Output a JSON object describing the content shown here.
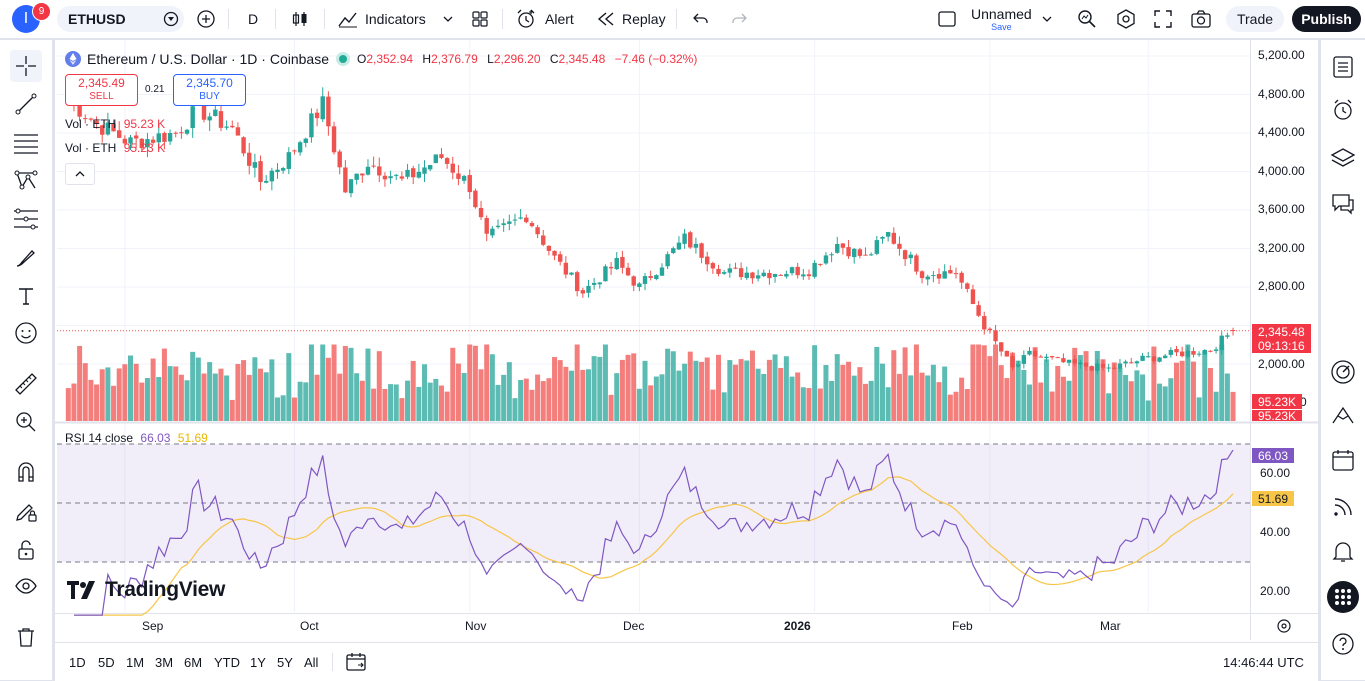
{
  "topbar": {
    "avatar_letter": "I",
    "notifications": "9",
    "symbol": "ETHUSD",
    "interval": "D",
    "indicators_label": "Indicators",
    "alert_label": "Alert",
    "replay_label": "Replay",
    "layout_name": "Unnamed",
    "layout_status": "Save",
    "trade_label": "Trade",
    "publish_label": "Publish"
  },
  "legend": {
    "title": "Ethereum / U.S. Dollar · 1D · Coinbase",
    "open_label": "O",
    "open": "2,352.94",
    "high_label": "H",
    "high": "2,376.79",
    "low_label": "L",
    "low": "2,296.20",
    "close_label": "C",
    "close": "2,345.48",
    "change": "−7.46 (−0.32%)"
  },
  "trade": {
    "sell_price": "2,345.49",
    "sell_label": "SELL",
    "spread": "0.21",
    "buy_price": "2,345.70",
    "buy_label": "BUY"
  },
  "volume_legend": {
    "label": "Vol · ETH",
    "value": "95.23 K"
  },
  "rsi_legend": {
    "label": "RSI 14 close",
    "rsi": "66.03",
    "ma": "51.69"
  },
  "price_axis": [
    "5,200.00",
    "4,800.00",
    "4,400.00",
    "4,000.00",
    "3,600.00",
    "3,200.00",
    "2,800.00",
    "2,000.00",
    "0"
  ],
  "rsi_axis": [
    "60.00",
    "40.00",
    "20.00"
  ],
  "tags": {
    "last_price": "2,345.48",
    "countdown": "09:13:16",
    "vol1": "95.23K",
    "vol2": "95.23K",
    "rsi": "66.03",
    "rsi_ma": "51.69"
  },
  "time_axis": [
    "Sep",
    "Oct",
    "Nov",
    "Dec",
    "2026",
    "Feb",
    "Mar"
  ],
  "logo_text": "TradingView",
  "bottom": {
    "ranges": [
      "1D",
      "5D",
      "1M",
      "3M",
      "6M",
      "YTD",
      "1Y",
      "5Y",
      "All"
    ],
    "clock": "14:46:44 UTC"
  },
  "colors": {
    "up": "#26a69a",
    "down": "#ef5350",
    "rsi": "#7e57c2",
    "rsi_ma": "#f7c548",
    "accent": "#2962ff"
  },
  "chart_data": {
    "type": "candlestick",
    "title": "Ethereum / U.S. Dollar · 1D · Coinbase",
    "ylim": [
      1700,
      5300
    ],
    "x_months": [
      "Sep",
      "Oct",
      "Nov",
      "Dec",
      "2026",
      "Feb",
      "Mar"
    ],
    "close_keypoints": [
      {
        "date": "2025-08-22",
        "close": 4750
      },
      {
        "date": "2025-08-27",
        "close": 4500
      },
      {
        "date": "2025-09-02",
        "close": 4300
      },
      {
        "date": "2025-09-10",
        "close": 4400
      },
      {
        "date": "2025-09-14",
        "close": 4650
      },
      {
        "date": "2025-09-20",
        "close": 4450
      },
      {
        "date": "2025-09-25",
        "close": 3900
      },
      {
        "date": "2025-09-30",
        "close": 4150
      },
      {
        "date": "2025-10-06",
        "close": 4700
      },
      {
        "date": "2025-10-10",
        "close": 3800
      },
      {
        "date": "2025-10-14",
        "close": 4100
      },
      {
        "date": "2025-10-20",
        "close": 3900
      },
      {
        "date": "2025-10-27",
        "close": 4150
      },
      {
        "date": "2025-11-01",
        "close": 3850
      },
      {
        "date": "2025-11-04",
        "close": 3300
      },
      {
        "date": "2025-11-11",
        "close": 3550
      },
      {
        "date": "2025-11-16",
        "close": 3100
      },
      {
        "date": "2025-11-21",
        "close": 2750
      },
      {
        "date": "2025-11-27",
        "close": 3050
      },
      {
        "date": "2025-12-01",
        "close": 2800
      },
      {
        "date": "2025-12-09",
        "close": 3300
      },
      {
        "date": "2025-12-16",
        "close": 2950
      },
      {
        "date": "2025-12-24",
        "close": 2950
      },
      {
        "date": "2025-12-31",
        "close": 2980
      },
      {
        "date": "2026-01-05",
        "close": 3250
      },
      {
        "date": "2026-01-10",
        "close": 3100
      },
      {
        "date": "2026-01-14",
        "close": 3350
      },
      {
        "date": "2026-01-20",
        "close": 2950
      },
      {
        "date": "2026-01-26",
        "close": 2950
      },
      {
        "date": "2026-01-31",
        "close": 2400
      },
      {
        "date": "2026-02-05",
        "close": 1950
      },
      {
        "date": "2026-02-08",
        "close": 2100
      },
      {
        "date": "2026-02-15",
        "close": 2000
      },
      {
        "date": "2026-02-22",
        "close": 1950
      },
      {
        "date": "2026-02-28",
        "close": 2050
      },
      {
        "date": "2026-03-05",
        "close": 2100
      },
      {
        "date": "2026-03-12",
        "close": 2150
      },
      {
        "date": "2026-03-16",
        "close": 2345.48
      }
    ],
    "rsi_range": [
      10,
      80
    ],
    "rsi_levels": [
      70,
      50,
      30
    ]
  }
}
